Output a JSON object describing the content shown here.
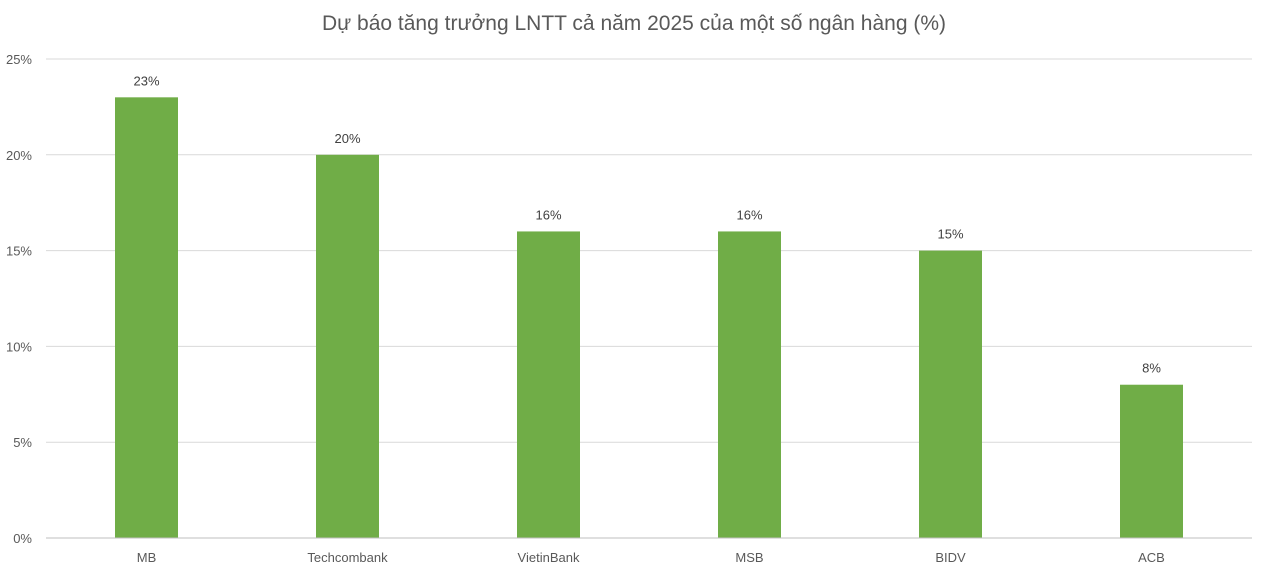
{
  "chart_data": {
    "type": "bar",
    "title": "Dự báo tăng trưởng LNTT cả năm 2025 của một số ngân hàng (%)",
    "categories": [
      "MB",
      "Techcombank",
      "VietinBank",
      "MSB",
      "BIDV",
      "ACB"
    ],
    "values": [
      23,
      20,
      16,
      16,
      15,
      8
    ],
    "value_labels": [
      "23%",
      "20%",
      "16%",
      "16%",
      "15%",
      "8%"
    ],
    "y_ticks": [
      0,
      5,
      10,
      15,
      20,
      25
    ],
    "y_tick_labels": [
      "0%",
      "5%",
      "10%",
      "15%",
      "20%",
      "25%"
    ],
    "ylim": [
      0,
      25
    ],
    "grid": true,
    "legend": "none",
    "bar_color": "#70ad47"
  }
}
